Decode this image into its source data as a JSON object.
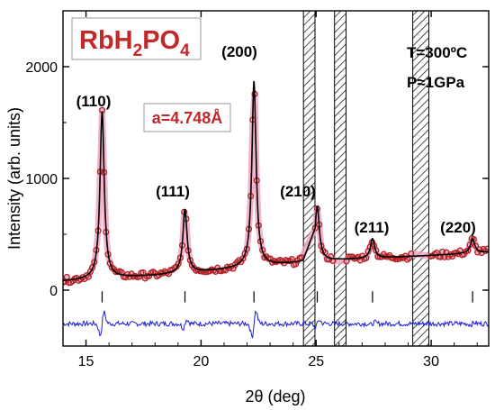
{
  "chart_data": {
    "type": "line",
    "title": "",
    "xlabel": "2θ (deg)",
    "ylabel": "Intensity (arb. units)",
    "xlim": [
      14,
      32.5
    ],
    "ylim": [
      -500,
      2500
    ],
    "x_ticks": [
      15,
      20,
      25,
      30
    ],
    "y_ticks": [
      0,
      1000,
      2000
    ],
    "sample": {
      "main": "RbH",
      "sub1": "2",
      "mid": "PO",
      "sub2": "4"
    },
    "lattice_param": "a=4.748Å",
    "conditions": [
      "T=300ºC",
      "P≈1GPa"
    ],
    "peaks": [
      {
        "label": "(110)",
        "x": 15.7,
        "y": 1600
      },
      {
        "label": "(111)",
        "x": 19.3,
        "y": 720
      },
      {
        "label": "(200)",
        "x": 22.3,
        "y": 1870
      },
      {
        "label": "(210)",
        "x": 25.05,
        "y": 750
      },
      {
        "label": "(211)",
        "x": 27.45,
        "y": 460
      },
      {
        "label": "(220)",
        "x": 31.8,
        "y": 460
      }
    ],
    "bragg_ticks": [
      15.7,
      19.3,
      22.3,
      25.05,
      27.45,
      31.8
    ],
    "excluded_regions": [
      [
        24.45,
        24.95
      ],
      [
        25.8,
        26.3
      ],
      [
        29.2,
        29.9
      ]
    ],
    "background": {
      "x": [
        14,
        18,
        22,
        25,
        30,
        32.5
      ],
      "y": [
        80,
        130,
        200,
        260,
        310,
        340
      ]
    },
    "difference_offset": -300,
    "series": [
      {
        "role": "observed",
        "color": "#b22222"
      },
      {
        "role": "calculated",
        "color": "#000000"
      },
      {
        "role": "difference",
        "color": "#1a1adc"
      }
    ],
    "colors": {
      "sample_label": "#c0282a",
      "lattice_label": "#c0282a",
      "pink": "#f0a0c0"
    }
  }
}
